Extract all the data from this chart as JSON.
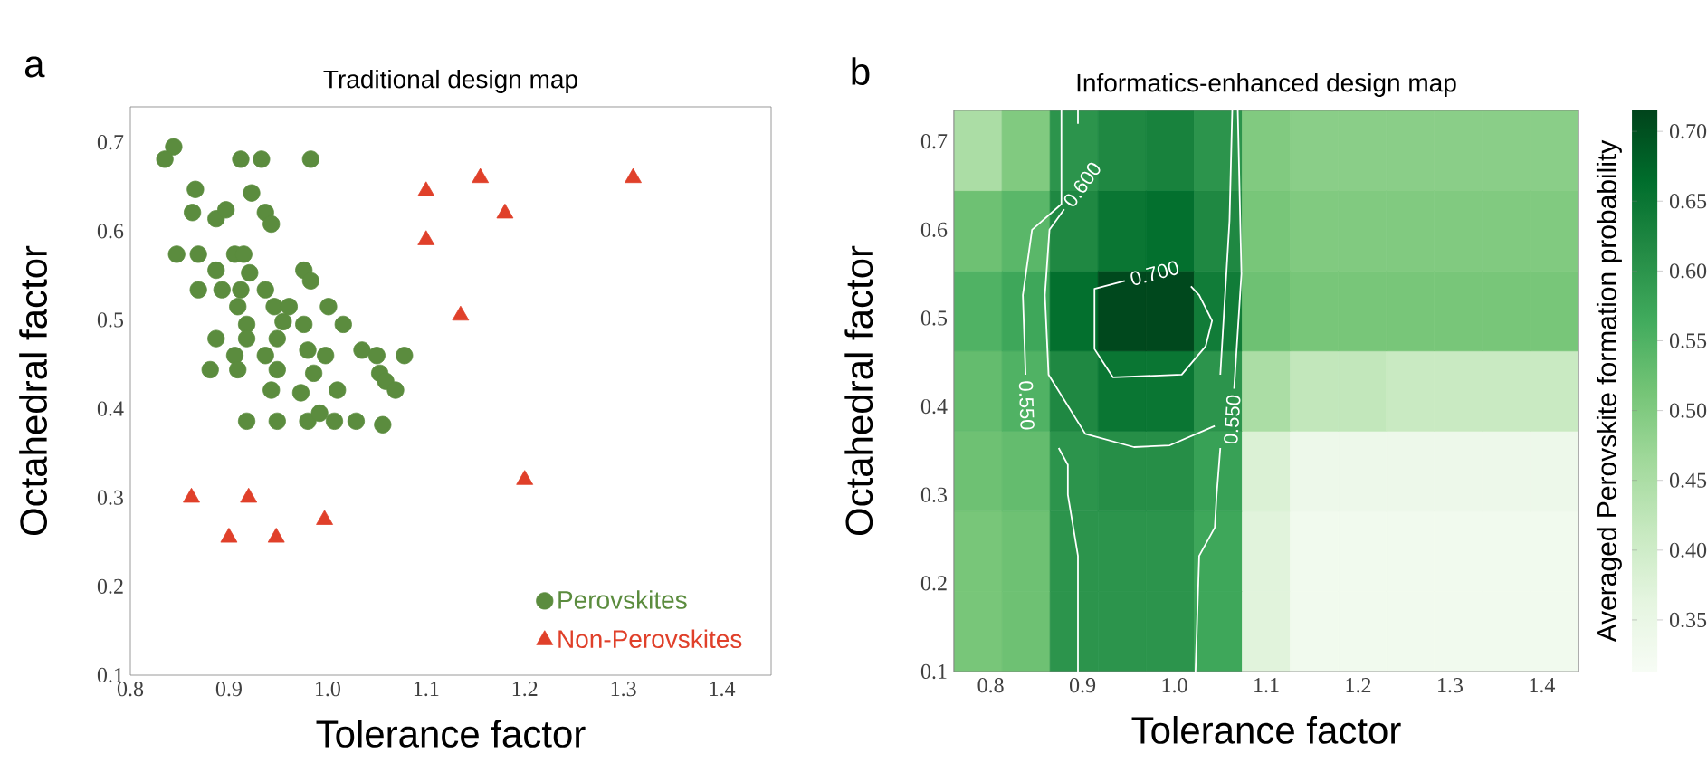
{
  "chart_data": [
    {
      "type": "scatter",
      "title": "Traditional design map",
      "xlabel": "Tolerance factor",
      "ylabel": "Octahedral factor",
      "xlim": [
        0.8,
        1.45
      ],
      "ylim": [
        0.1,
        0.74
      ],
      "xticks": [
        0.8,
        0.9,
        {
          "value": 1,
          "label": "1.0"
        },
        1.1,
        1.2,
        1.3,
        1.4
      ],
      "yticks": [
        0.1,
        0.2,
        0.3,
        0.4,
        0.5,
        0.6,
        0.7
      ],
      "legend": "bottom right",
      "series": [
        {
          "name": "Perovskites",
          "color": "#5b8c3e",
          "marker": "circle",
          "x": [
            0.844,
            0.835,
            0.912,
            0.933,
            0.983,
            0.866,
            0.863,
            0.887,
            0.897,
            0.923,
            0.937,
            0.943,
            0.847,
            0.869,
            0.906,
            0.915,
            0.887,
            0.921,
            0.976,
            0.983,
            0.869,
            0.893,
            0.912,
            0.937,
            0.909,
            0.946,
            0.961,
            1.001,
            0.918,
            0.955,
            0.976,
            1.016,
            0.887,
            0.918,
            0.949,
            0.98,
            0.998,
            1.035,
            1.05,
            1.078,
            0.906,
            0.937,
            0.881,
            0.909,
            0.949,
            0.986,
            1.053,
            1.059,
            0.943,
            0.973,
            1.01,
            1.069,
            0.918,
            0.949,
            0.98,
            1.007,
            1.029,
            1.056,
            0.992
          ],
          "values": [
            0.695,
            0.681,
            0.681,
            0.681,
            0.681,
            0.647,
            0.621,
            0.614,
            0.624,
            0.643,
            0.621,
            0.608,
            0.574,
            0.574,
            0.574,
            0.574,
            0.556,
            0.553,
            0.556,
            0.544,
            0.534,
            0.534,
            0.534,
            0.534,
            0.515,
            0.515,
            0.515,
            0.515,
            0.495,
            0.498,
            0.495,
            0.495,
            0.479,
            0.479,
            0.479,
            0.466,
            0.46,
            0.466,
            0.46,
            0.46,
            0.46,
            0.46,
            0.444,
            0.444,
            0.444,
            0.44,
            0.44,
            0.431,
            0.421,
            0.418,
            0.421,
            0.421,
            0.386,
            0.386,
            0.386,
            0.386,
            0.386,
            0.382,
            0.395
          ]
        },
        {
          "name": "Non-Perovskites",
          "color": "#e0402a",
          "marker": "triangle",
          "x": [
            1.31,
            1.155,
            1.18,
            1.1,
            1.1,
            1.135,
            1.2,
            0.862,
            0.92,
            0.9,
            0.948,
            0.997
          ],
          "values": [
            0.66,
            0.66,
            0.62,
            0.645,
            0.59,
            0.505,
            0.32,
            0.3,
            0.3,
            0.255,
            0.255,
            0.275
          ]
        }
      ],
      "annotations": [
        "a"
      ]
    },
    {
      "type": "heatmap",
      "title": "Informatics-enhanced design map",
      "clabel": "Averaged Perovskite formation probability",
      "categories": [
        null,
        null,
        null,
        null,
        null,
        null,
        null,
        null,
        null,
        null,
        null,
        null,
        null
      ],
      "y_categories": [
        null,
        null,
        null,
        null,
        null,
        null,
        null
      ],
      "cells": [
        [
          0.45,
          0.5,
          0.6,
          0.62,
          0.63,
          0.6,
          0.5,
          0.49,
          0.49,
          0.49,
          0.49,
          0.49,
          0.49
        ],
        [
          0.52,
          0.54,
          0.62,
          0.65,
          0.66,
          0.62,
          0.51,
          0.5,
          0.5,
          0.5,
          0.5,
          0.5,
          0.5
        ],
        [
          0.55,
          0.57,
          0.66,
          0.71,
          0.71,
          0.64,
          0.52,
          0.51,
          0.51,
          0.51,
          0.51,
          0.51,
          0.51
        ],
        [
          0.53,
          0.55,
          0.62,
          0.65,
          0.65,
          0.6,
          0.45,
          0.42,
          0.42,
          0.41,
          0.41,
          0.41,
          0.41
        ],
        [
          0.52,
          0.53,
          0.6,
          0.61,
          0.61,
          0.58,
          0.38,
          0.34,
          0.34,
          0.34,
          0.34,
          0.34,
          0.34
        ],
        [
          0.51,
          0.52,
          0.6,
          0.6,
          0.6,
          0.57,
          0.37,
          0.33,
          0.33,
          0.33,
          0.33,
          0.33,
          0.33
        ],
        [
          0.51,
          0.52,
          0.6,
          0.6,
          0.6,
          0.57,
          0.37,
          0.33,
          0.33,
          0.33,
          0.33,
          0.33,
          0.33
        ]
      ],
      "clim": [
        0.313,
        0.715
      ],
      "cticks": [
        0.35,
        {
          "value": 0.4,
          "label": "0.40"
        },
        0.45,
        {
          "value": 0.5,
          "label": "0.50"
        },
        0.55,
        {
          "value": 0.6,
          "label": "0.60"
        },
        0.65,
        {
          "value": 0.7,
          "label": "0.70"
        }
      ],
      "annotations": [
        "b"
      ]
    },
    {
      "type": "line",
      "xlabel": "Tolerance factor",
      "ylabel": "Octahedral factor",
      "xlim": [
        0.76,
        1.44
      ],
      "ylim": [
        0.1,
        0.735
      ],
      "xticks": [
        0.8,
        0.9,
        {
          "value": 1,
          "label": "1.0"
        },
        1.1,
        1.2,
        1.3,
        1.4
      ],
      "yticks": [
        0.1,
        0.2,
        0.3,
        0.4,
        0.5,
        0.6,
        0.7
      ],
      "series": [
        {
          "color": "#ffffff",
          "x": [
            0.895,
            0.895
          ],
          "values": [
            0.735,
            0.72
          ]
        },
        {
          "name": "0.600",
          "color": "#ffffff",
          "x": [
            0.88,
            0.864,
            0.859,
            0.863,
            0.903,
            0.956,
            0.995,
            1.044
          ],
          "values": [
            0.623,
            0.6,
            0.526,
            0.436,
            0.369,
            0.354,
            0.356,
            0.378
          ]
        },
        {
          "color": "#ffffff",
          "x": [
            1.05,
            1.06,
            1.063
          ],
          "values": [
            0.436,
            0.61,
            0.735
          ]
        },
        {
          "name": "0.550",
          "color": "#ffffff",
          "x": [
            0.838,
            0.835,
            0.845,
            0.877,
            0.877
          ],
          "values": [
            0.436,
            0.526,
            0.6,
            0.629,
            0.735
          ]
        },
        {
          "name": "0.550",
          "color": "#ffffff",
          "x": [
            1.065,
            1.073,
            1.069
          ],
          "values": [
            0.42,
            0.55,
            0.735
          ]
        },
        {
          "color": "#ffffff",
          "x": [
            0.874,
            0.884,
            0.884,
            0.895,
            0.895
          ],
          "values": [
            0.353,
            0.334,
            0.3,
            0.231,
            0.1
          ]
        },
        {
          "color": "#ffffff",
          "x": [
            1.05,
            1.046,
            1.044,
            1.027,
            1.023
          ],
          "values": [
            0.353,
            0.3,
            0.263,
            0.231,
            0.1
          ]
        },
        {
          "name": "0.700",
          "color": "#ffffff",
          "x": [
            0.946,
            0.913,
            0.913,
            0.933,
            1.008,
            1.034,
            1.041,
            1.027,
            1.018
          ],
          "values": [
            0.542,
            0.533,
            0.465,
            0.433,
            0.436,
            0.468,
            0.497,
            0.526,
            0.536
          ]
        }
      ]
    }
  ]
}
